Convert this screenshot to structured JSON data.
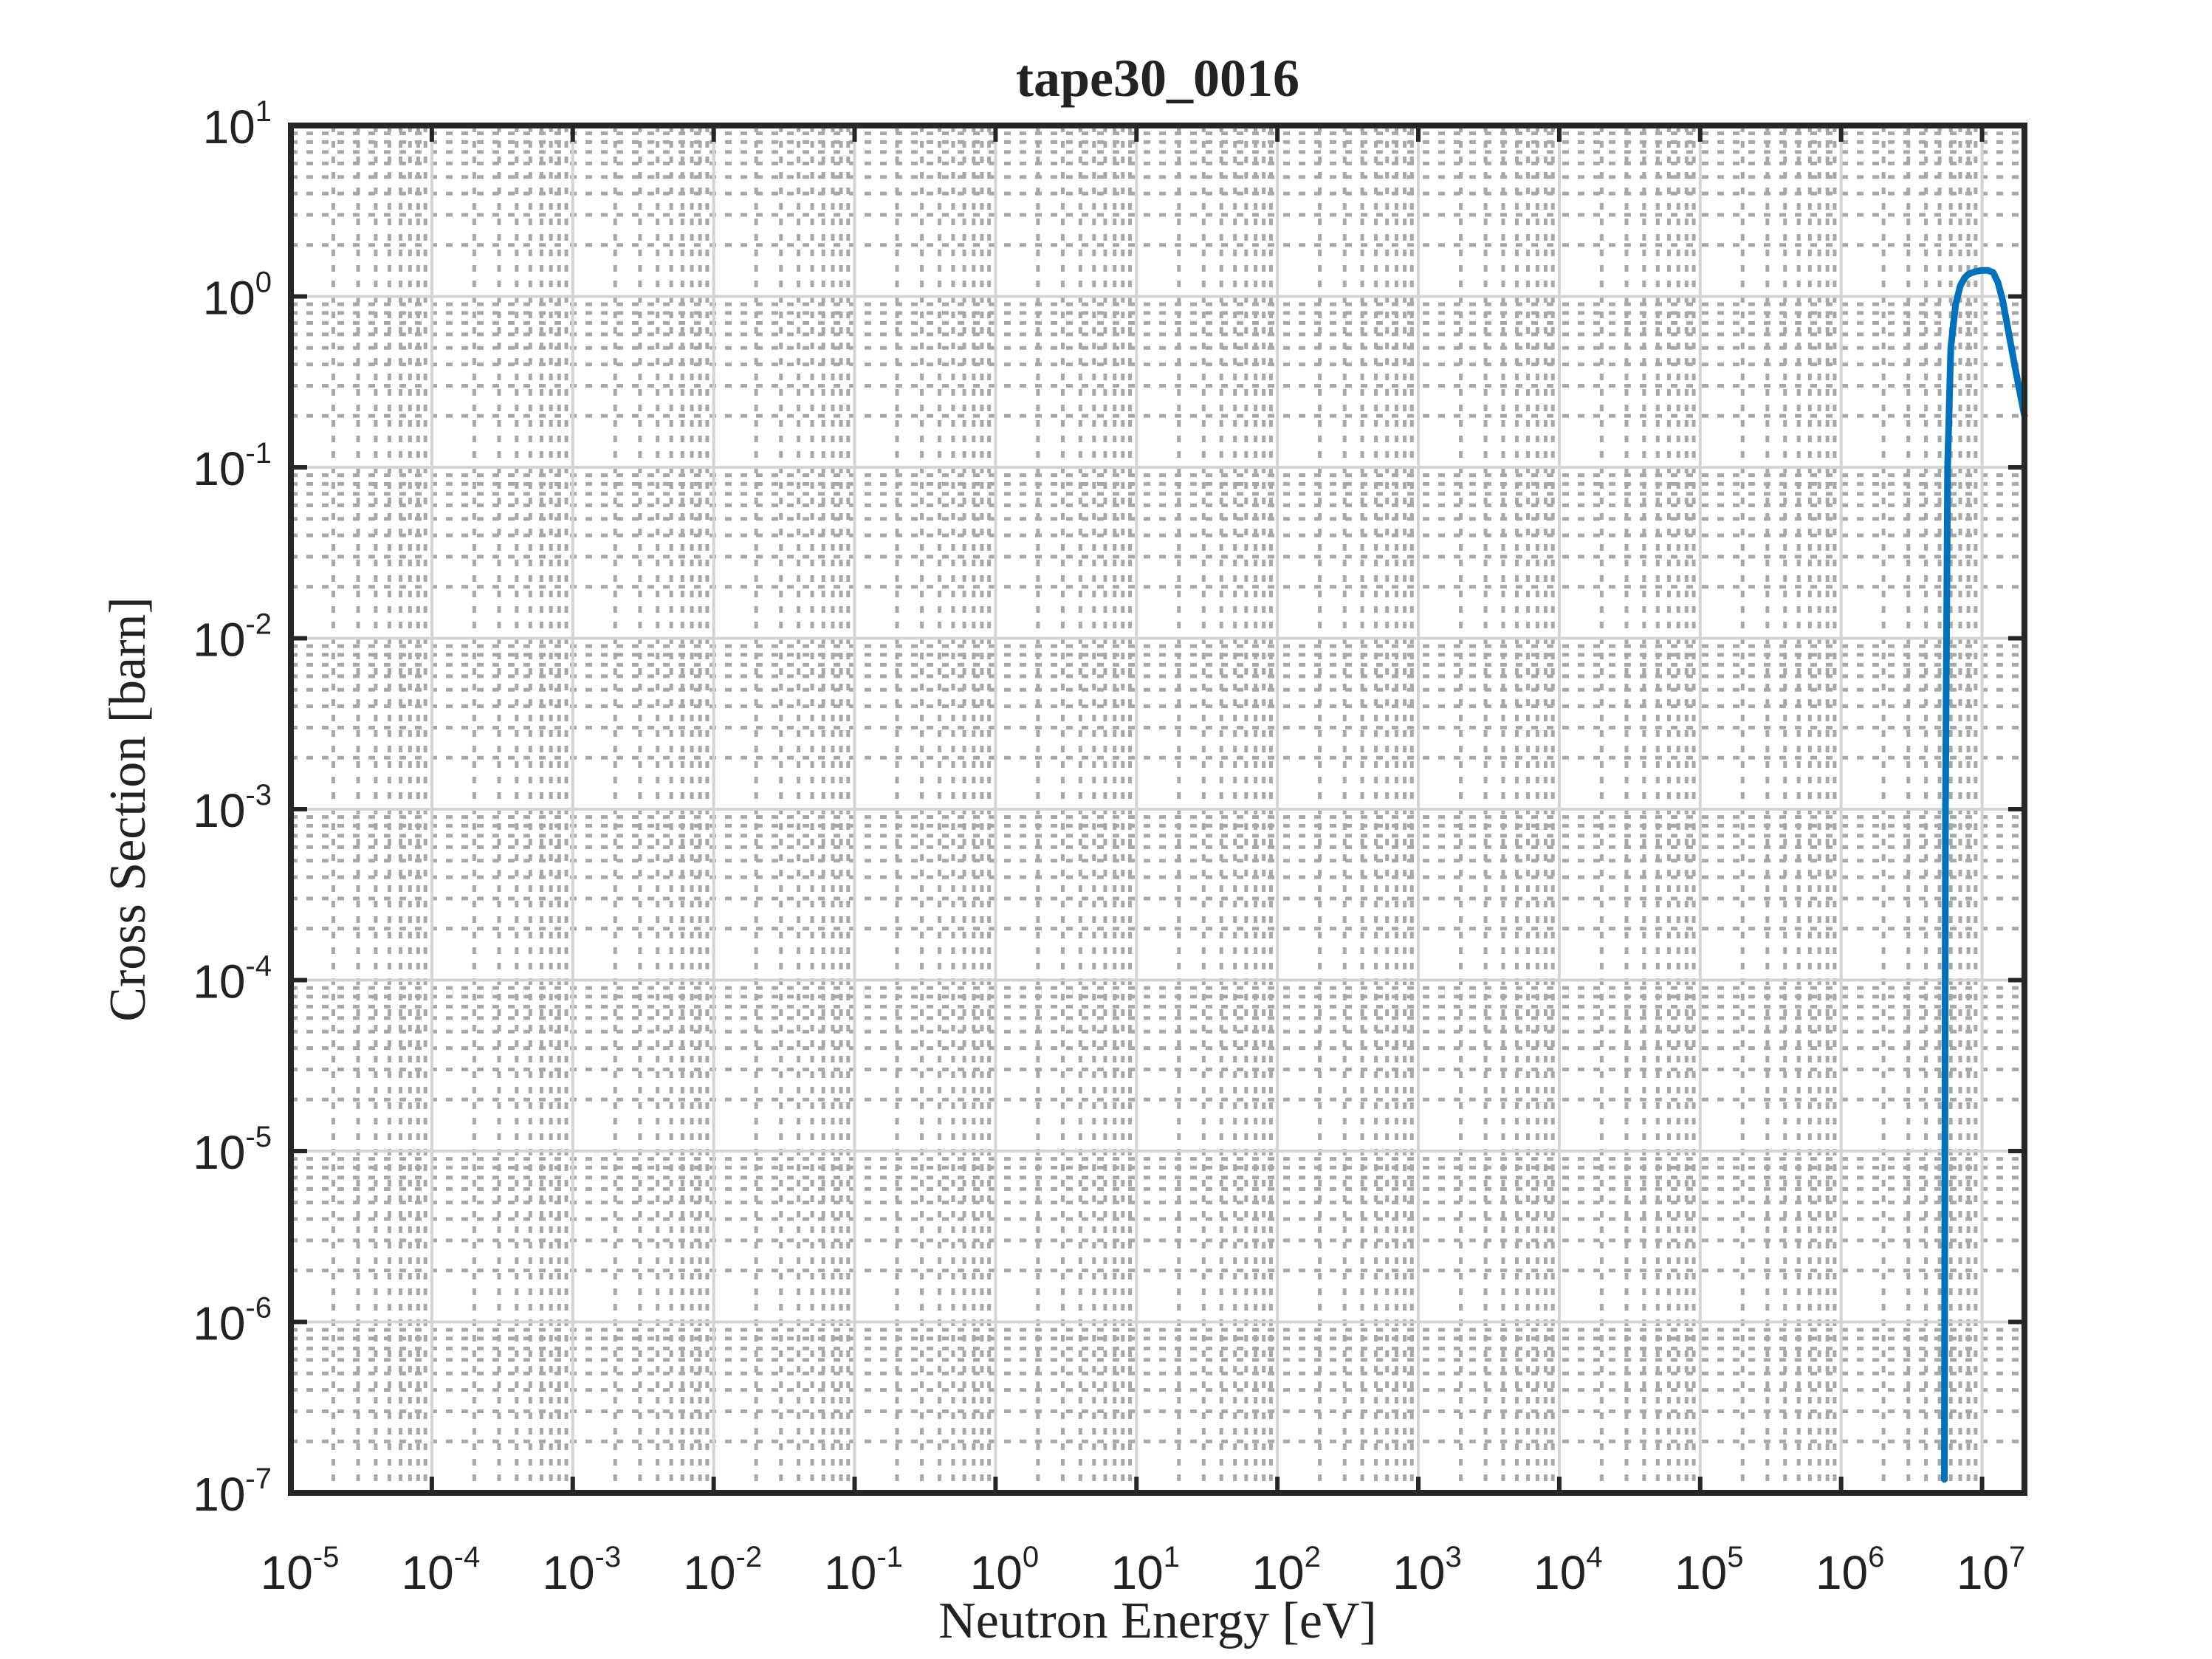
{
  "chart_data": {
    "type": "line",
    "title": "tape30_0016",
    "xlabel": "Neutron Energy [eV]",
    "ylabel": "Cross Section [barn]",
    "x_scale": "log",
    "y_scale": "log",
    "xlim": [
      1e-05,
      20000000.0
    ],
    "ylim": [
      1e-07,
      10
    ],
    "x_ticks": [
      {
        "base": "10",
        "exp": "-5",
        "value": 1e-05
      },
      {
        "base": "10",
        "exp": "-4",
        "value": 0.0001
      },
      {
        "base": "10",
        "exp": "-3",
        "value": 0.001
      },
      {
        "base": "10",
        "exp": "-2",
        "value": 0.01
      },
      {
        "base": "10",
        "exp": "-1",
        "value": 0.1
      },
      {
        "base": "10",
        "exp": "0",
        "value": 1
      },
      {
        "base": "10",
        "exp": "1",
        "value": 10
      },
      {
        "base": "10",
        "exp": "2",
        "value": 100
      },
      {
        "base": "10",
        "exp": "3",
        "value": 1000
      },
      {
        "base": "10",
        "exp": "4",
        "value": 10000
      },
      {
        "base": "10",
        "exp": "5",
        "value": 100000
      },
      {
        "base": "10",
        "exp": "6",
        "value": 1000000
      },
      {
        "base": "10",
        "exp": "7",
        "value": 10000000
      }
    ],
    "y_ticks": [
      {
        "base": "10",
        "exp": "1",
        "value": 10
      },
      {
        "base": "10",
        "exp": "0",
        "value": 1
      },
      {
        "base": "10",
        "exp": "-1",
        "value": 0.1
      },
      {
        "base": "10",
        "exp": "-2",
        "value": 0.01
      },
      {
        "base": "10",
        "exp": "-3",
        "value": 0.001
      },
      {
        "base": "10",
        "exp": "-4",
        "value": 0.0001
      },
      {
        "base": "10",
        "exp": "-5",
        "value": 1e-05
      },
      {
        "base": "10",
        "exp": "-6",
        "value": 1e-06
      },
      {
        "base": "10",
        "exp": "-7",
        "value": 1e-07
      }
    ],
    "grid": {
      "major": true,
      "minor": true
    },
    "series": [
      {
        "color": "#0072BD",
        "x": [
          5400000.0,
          5500000.0,
          5700000.0,
          6000000.0,
          6500000.0,
          7000000.0,
          7500000.0,
          8000000.0,
          9000000.0,
          10000000.0,
          11000000.0,
          12000000.0,
          13000000.0,
          14000000.0,
          15000000.0,
          17000000.0,
          20000000.0
        ],
        "y": [
          1.2e-07,
          0.001,
          0.1,
          0.5,
          0.9,
          1.15,
          1.28,
          1.35,
          1.4,
          1.42,
          1.42,
          1.38,
          1.2,
          0.95,
          0.7,
          0.4,
          0.2
        ]
      }
    ]
  }
}
